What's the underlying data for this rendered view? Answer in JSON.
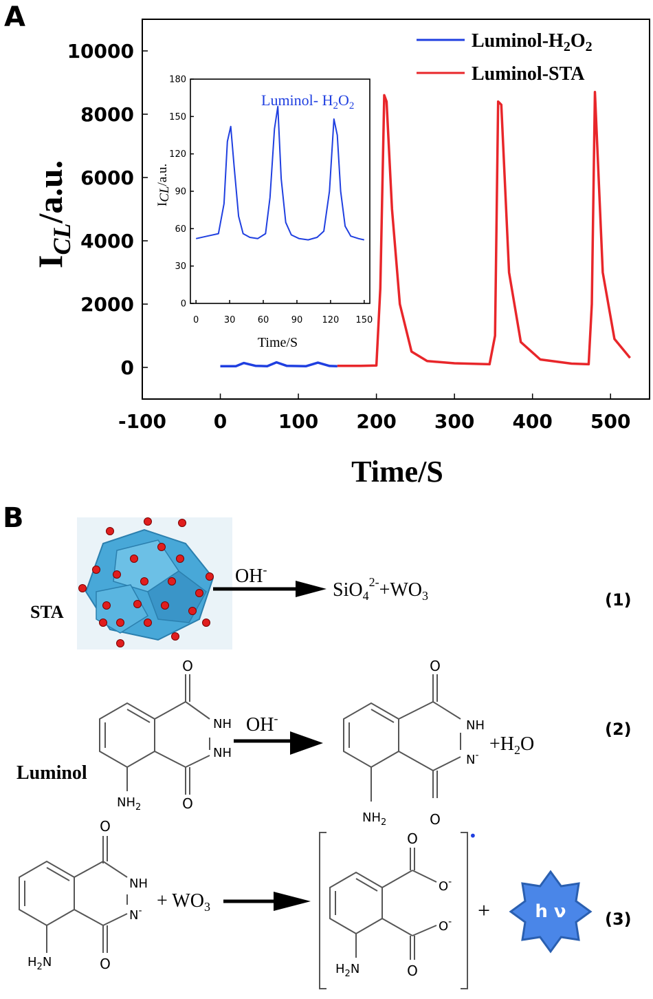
{
  "panel_a_label": "A",
  "panel_b_label": "B",
  "colors": {
    "series_blue": "#1f3fe0",
    "series_red": "#e8262a",
    "hex": "#4a86e8",
    "hex_edge": "#2a5fb0",
    "atom": "#e01e1e",
    "poly": "#48a8d8"
  },
  "chart_data": [
    {
      "type": "line",
      "ylabel_main": "I",
      "ylabel_sub": "CL",
      "ylabel_tail": "/a.u.",
      "xlabel": "Time/S",
      "xlim": [
        -100,
        550
      ],
      "ylim": [
        -1000,
        11000
      ],
      "xticks": [
        -100,
        0,
        100,
        200,
        300,
        400,
        500
      ],
      "yticks": [
        0,
        2000,
        4000,
        6000,
        8000,
        10000
      ],
      "legend_position": "top-right",
      "series": [
        {
          "name": "Luminol-H2O2",
          "color": "#1f3fe0",
          "x": [
            0,
            20,
            30,
            45,
            60,
            72,
            85,
            110,
            125,
            140,
            150
          ],
          "y": [
            40,
            40,
            140,
            50,
            40,
            160,
            50,
            40,
            150,
            45,
            40
          ]
        },
        {
          "name": "Luminol-STA",
          "color": "#e8262a",
          "x": [
            150,
            180,
            200,
            205,
            210,
            213,
            220,
            230,
            245,
            265,
            300,
            345,
            352,
            356,
            360,
            370,
            385,
            410,
            450,
            472,
            476,
            480,
            490,
            505,
            525
          ],
          "y": [
            50,
            50,
            60,
            2500,
            8600,
            8400,
            5000,
            2000,
            500,
            200,
            130,
            100,
            1000,
            8400,
            8300,
            3000,
            800,
            250,
            120,
            100,
            2000,
            8700,
            3000,
            900,
            300
          ]
        }
      ]
    },
    {
      "type": "line",
      "ylabel_main": "I",
      "ylabel_sub": "CL",
      "ylabel_tail": "/a.u.",
      "xlabel": "Time/S",
      "title": "Luminol- H2O2",
      "xlim": [
        -5,
        155
      ],
      "ylim": [
        0,
        180
      ],
      "xticks": [
        0,
        30,
        60,
        90,
        120,
        150
      ],
      "yticks": [
        0,
        30,
        60,
        90,
        120,
        150,
        180
      ],
      "series": [
        {
          "color": "#1f3fe0",
          "x": [
            0,
            10,
            20,
            25,
            28,
            31,
            34,
            38,
            42,
            48,
            55,
            62,
            66,
            70,
            73,
            76,
            80,
            85,
            92,
            100,
            108,
            114,
            119,
            123,
            126,
            129,
            133,
            138,
            145,
            150
          ],
          "y": [
            52,
            54,
            56,
            80,
            130,
            142,
            110,
            70,
            56,
            53,
            52,
            56,
            85,
            140,
            158,
            100,
            65,
            55,
            52,
            51,
            53,
            58,
            90,
            148,
            135,
            90,
            62,
            54,
            52,
            51
          ]
        }
      ]
    }
  ],
  "scheme": {
    "eq1": {
      "reactant": "STA",
      "reagent": "OH",
      "reagent_charge": "-",
      "product_a": "SiO",
      "product_a_sub": "4",
      "product_a_sup": "2-",
      "product_b": "+WO",
      "product_b_sub": "3",
      "number": "(1)"
    },
    "eq2": {
      "reactant": "Luminol",
      "reagent": "OH",
      "reagent_charge": "-",
      "product_extra": "+H",
      "product_extra_sub": "2",
      "product_extra_tail": "O",
      "number": "(2)"
    },
    "eq3": {
      "reagent": "+ WO",
      "reagent_sub": "3",
      "plus": "+",
      "photon": "h ν",
      "number": "(3)"
    },
    "atoms": {
      "O": "O",
      "NH": "NH",
      "N_minus": "N",
      "minus": "-",
      "NH2": "NH",
      "NH2_sub": "2",
      "H2N": "H",
      "H2N_sub": "2",
      "H2N_tail": "N",
      "O_minus": "O",
      "radical_dot": "•"
    }
  }
}
